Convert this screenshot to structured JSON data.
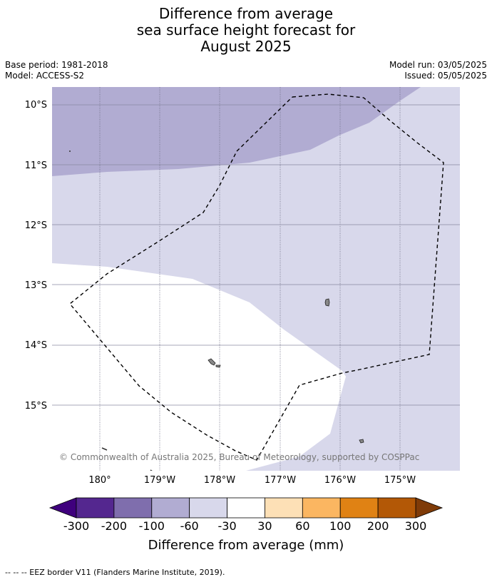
{
  "title": {
    "line1": "Difference from average",
    "line2": "sea surface height forecast for",
    "line3": "August 2025"
  },
  "meta": {
    "base_period": "Base period: 1981-2018",
    "model": "Model: ACCESS-S2",
    "model_run": "Model run: 03/05/2025",
    "issued": "Issued: 05/05/2025"
  },
  "map": {
    "lat_labels": [
      "10°S",
      "11°S",
      "12°S",
      "13°S",
      "14°S",
      "15°S"
    ],
    "lon_labels": [
      "180°",
      "179°W",
      "178°W",
      "177°W",
      "176°W",
      "175°W"
    ],
    "copyright": "© Commonwealth of Australia 2025, Bureau of Meteorology, supported by COSPPac",
    "region_colors": {
      "band_-100_-60": "#b1acd2",
      "band_-60_-30": "#d8d8eb",
      "band_-30_30": "#ffffff"
    },
    "eez_color": "#000000"
  },
  "colorbar": {
    "label": "Difference from average (mm)",
    "ticks": [
      "-300",
      "-200",
      "-100",
      "-60",
      "-30",
      "30",
      "60",
      "100",
      "200",
      "300"
    ],
    "colors": [
      "#3f007d",
      "#54278f",
      "#7f6ead",
      "#b1acd2",
      "#d8d8eb",
      "#ffffff",
      "#fde0b6",
      "#fbb661",
      "#e08214",
      "#b35806",
      "#7f3b08"
    ]
  },
  "footnote": "--  --  -- EEZ border V11 (Flanders Marine Institute, 2019)."
}
